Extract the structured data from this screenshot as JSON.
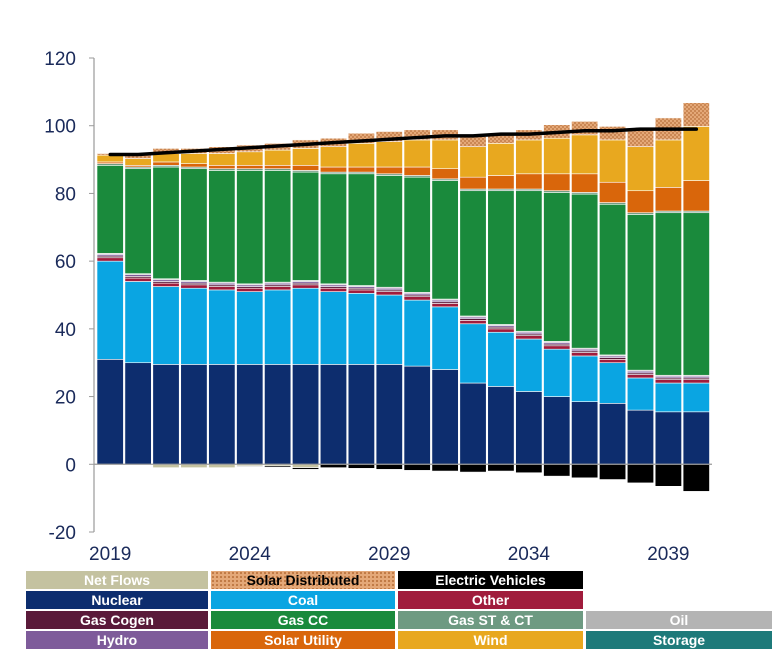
{
  "chart_data": {
    "type": "bar",
    "stacked": true,
    "title": "",
    "xlabel": "",
    "ylabel": "",
    "ylim": [
      -20,
      120
    ],
    "yticks": [
      120,
      100,
      80,
      60,
      40,
      20,
      0,
      -20
    ],
    "xtick_labels": [
      "2019",
      "2024",
      "2029",
      "2034",
      "2039"
    ],
    "categories": [
      "2019",
      "2020",
      "2021",
      "2022",
      "2023",
      "2024",
      "2025",
      "2026",
      "2027",
      "2028",
      "2029",
      "2030",
      "2031",
      "2032",
      "2033",
      "2034",
      "2035",
      "2036",
      "2037",
      "2038",
      "2039",
      "2040"
    ],
    "series": [
      {
        "name": "Nuclear",
        "color": "#0d2d6e",
        "values": [
          31,
          30,
          29.5,
          29.5,
          29.5,
          29.5,
          29.5,
          29.5,
          29.5,
          29.5,
          29.5,
          29,
          28,
          24,
          23,
          21.5,
          20,
          18.5,
          18,
          16,
          15.5,
          15.5
        ]
      },
      {
        "name": "Coal",
        "color": "#0aa5e2",
        "values": [
          29,
          24,
          23,
          22.5,
          22,
          21.5,
          22,
          22.5,
          21.5,
          21,
          20.5,
          19.5,
          18.5,
          17.5,
          16,
          15.5,
          14,
          13.5,
          12,
          9.5,
          8.5,
          8.5
        ]
      },
      {
        "name": "Other",
        "color": "#a01c3c",
        "values": [
          1,
          1,
          1,
          1,
          1,
          1,
          1,
          1,
          1,
          1,
          1,
          1,
          1,
          1,
          1,
          1,
          1,
          1,
          1,
          1,
          1,
          1
        ]
      },
      {
        "name": "Gas Cogen",
        "color": "#5a1a3a",
        "values": [
          0.5,
          0.5,
          0.5,
          0.5,
          0.5,
          0.5,
          0.5,
          0.5,
          0.5,
          0.5,
          0.5,
          0.5,
          0.5,
          0.5,
          0.5,
          0.5,
          0.5,
          0.5,
          0.5,
          0.5,
          0.5,
          0.5
        ]
      },
      {
        "name": "Hydro",
        "color": "#7e5b9a",
        "values": [
          0.5,
          0.5,
          0.5,
          0.5,
          0.5,
          0.5,
          0.5,
          0.5,
          0.5,
          0.5,
          0.5,
          0.5,
          0.5,
          0.5,
          0.5,
          0.5,
          0.5,
          0.5,
          0.5,
          0.5,
          0.5,
          0.5
        ]
      },
      {
        "name": "Oil",
        "color": "#b4b4b4",
        "values": [
          0.3,
          0.3,
          0.3,
          0.3,
          0.3,
          0.3,
          0.3,
          0.3,
          0.3,
          0.3,
          0.3,
          0.3,
          0.3,
          0.3,
          0.3,
          0.3,
          0.3,
          0.3,
          0.3,
          0.3,
          0.3,
          0.3
        ]
      },
      {
        "name": "Gas CC",
        "color": "#1a8a3c",
        "values": [
          26,
          31,
          33,
          33,
          33,
          33.5,
          33,
          32,
          32.5,
          33,
          33,
          34,
          35,
          37,
          39.5,
          41.5,
          44,
          45.5,
          44.5,
          46,
          48,
          48
        ]
      },
      {
        "name": "Gas ST & CT",
        "color": "#6e9a82",
        "values": [
          0.5,
          0.5,
          0.5,
          0.5,
          0.5,
          0.5,
          0.5,
          0.5,
          0.5,
          0.5,
          0.5,
          0.5,
          0.5,
          0.5,
          0.5,
          0.5,
          0.5,
          0.5,
          0.5,
          0.5,
          0.5,
          0.5
        ]
      },
      {
        "name": "Storage",
        "color": "#1e7a7a",
        "values": [
          0,
          0,
          0,
          0,
          0,
          0,
          0,
          0,
          0,
          0,
          0,
          0,
          0,
          0,
          0,
          0,
          0,
          0,
          0,
          0,
          0,
          0
        ]
      },
      {
        "name": "Solar Utility",
        "color": "#d9660b",
        "values": [
          0.5,
          0.5,
          1,
          1,
          1,
          1,
          1,
          1.5,
          1.5,
          1.5,
          2,
          2.5,
          3,
          3.5,
          4,
          4.5,
          5,
          5.5,
          6,
          6.5,
          7,
          9
        ]
      },
      {
        "name": "Wind",
        "color": "#e8a81f",
        "values": [
          2,
          2,
          2.5,
          3,
          3.5,
          4,
          4.5,
          5,
          6,
          7,
          7.5,
          8,
          8.5,
          9,
          9.5,
          10,
          10.5,
          11.5,
          12.5,
          13,
          14,
          16
        ]
      },
      {
        "name": "Solar Distributed",
        "color": "#e0a070",
        "pattern": true,
        "values": [
          0.5,
          1,
          1.5,
          1.5,
          2,
          2,
          2,
          2.5,
          2.5,
          3,
          3,
          3,
          3,
          3,
          3,
          3,
          4,
          4,
          4,
          5,
          6.5,
          7
        ]
      },
      {
        "name": "Net Flows",
        "color": "#c4c2a0",
        "values": [
          0,
          0,
          -1,
          -1,
          -1,
          -0.5,
          -0.5,
          -1,
          0,
          0,
          0,
          0,
          0,
          0,
          0,
          0,
          0,
          0,
          0,
          0,
          0,
          0
        ]
      },
      {
        "name": "Electric Vehicles",
        "color": "#000000",
        "values": [
          0,
          0,
          0,
          0,
          0,
          -0.2,
          -0.4,
          -0.5,
          -1,
          -1.2,
          -1.5,
          -1.8,
          -2,
          -2.3,
          -2,
          -2.5,
          -3.5,
          -4,
          -4.5,
          -5.5,
          -6.5,
          -8
        ]
      }
    ],
    "line": {
      "color": "#000000",
      "values": [
        91.5,
        91.5,
        92,
        92.5,
        93,
        93.5,
        94,
        94.5,
        95,
        95.5,
        96,
        96.5,
        97,
        97,
        97.5,
        97.5,
        98,
        98.5,
        98.5,
        99,
        99,
        99
      ]
    },
    "legend": [
      [
        {
          "label": "Net Flows",
          "color": "#c4c2a0",
          "text": "#ffffff"
        },
        {
          "label": "Solar Distributed",
          "color": "#e0a070",
          "pattern": true,
          "text": "#000000"
        },
        {
          "label": "Electric Vehicles",
          "color": "#000000",
          "text": "#ffffff"
        },
        null
      ],
      [
        {
          "label": "Nuclear",
          "color": "#0d2d6e",
          "text": "#ffffff"
        },
        {
          "label": "Coal",
          "color": "#0aa5e2",
          "text": "#ffffff"
        },
        {
          "label": "Other",
          "color": "#a01c3c",
          "text": "#ffffff"
        },
        null
      ],
      [
        {
          "label": "Gas Cogen",
          "color": "#5a1a3a",
          "text": "#ffffff"
        },
        {
          "label": "Gas CC",
          "color": "#1a8a3c",
          "text": "#ffffff"
        },
        {
          "label": "Gas ST & CT",
          "color": "#6e9a82",
          "text": "#ffffff"
        },
        {
          "label": "Oil",
          "color": "#b4b4b4",
          "text": "#ffffff"
        }
      ],
      [
        {
          "label": "Hydro",
          "color": "#7e5b9a",
          "text": "#ffffff"
        },
        {
          "label": "Solar Utility",
          "color": "#d9660b",
          "text": "#ffffff"
        },
        {
          "label": "Wind",
          "color": "#e8a81f",
          "text": "#ffffff"
        },
        {
          "label": "Storage",
          "color": "#1e7a7a",
          "text": "#ffffff"
        }
      ]
    ],
    "axis_text_color": "#1a2a5a"
  }
}
